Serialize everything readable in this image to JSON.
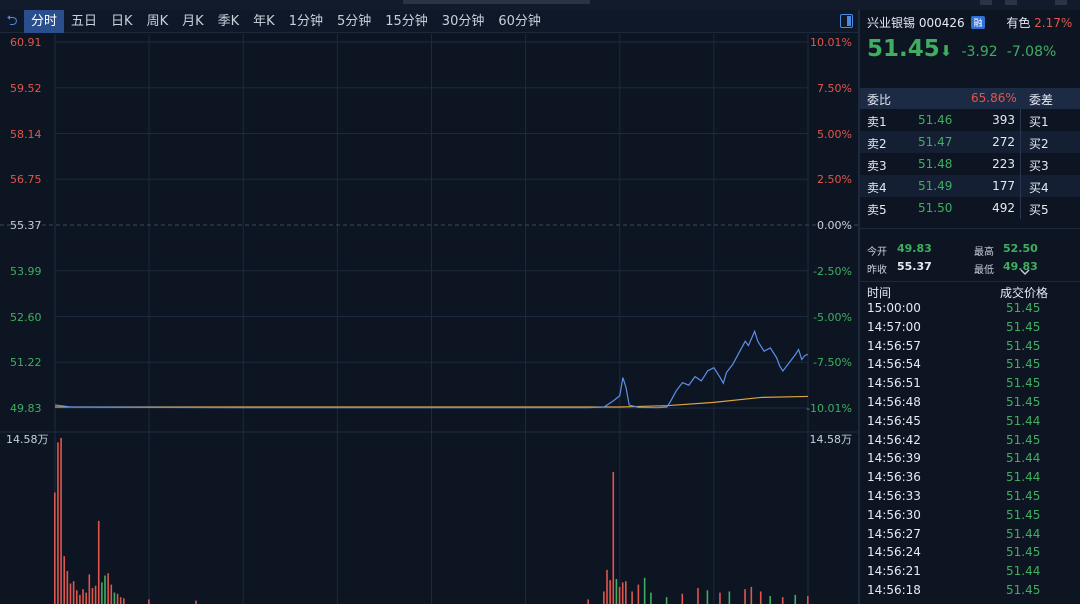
{
  "tabbar": {
    "tabs": [
      "分时",
      "五日",
      "日K",
      "周K",
      "月K",
      "季K",
      "年K",
      "1分钟",
      "5分钟",
      "15分钟",
      "30分钟",
      "60分钟"
    ],
    "active_index": 0
  },
  "chart_data": {
    "type": "line",
    "price_axis": {
      "ticks": [
        "60.91",
        "59.52",
        "58.14",
        "56.75",
        "55.37",
        "53.99",
        "52.60",
        "51.22",
        "49.83"
      ],
      "range": [
        49.83,
        60.91
      ]
    },
    "pct_axis": {
      "ticks": [
        "10.01%",
        "7.50%",
        "5.00%",
        "2.50%",
        "0.00%",
        "-2.50%",
        "-5.00%",
        "-7.50%",
        "-10.01%"
      ]
    },
    "prev_close": 55.37,
    "session_minutes": 240,
    "price_series": [
      [
        0,
        49.92
      ],
      [
        5,
        49.86
      ],
      [
        60,
        49.84
      ],
      [
        120,
        49.84
      ],
      [
        170,
        49.84
      ],
      [
        175,
        49.86
      ],
      [
        178,
        50.05
      ],
      [
        180,
        50.2
      ],
      [
        181,
        50.75
      ],
      [
        182,
        50.45
      ],
      [
        183,
        49.92
      ],
      [
        186,
        49.85
      ],
      [
        192,
        49.84
      ],
      [
        195,
        49.86
      ],
      [
        196,
        50.0
      ],
      [
        198,
        50.35
      ],
      [
        200,
        50.6
      ],
      [
        202,
        50.52
      ],
      [
        204,
        50.78
      ],
      [
        206,
        50.65
      ],
      [
        208,
        50.95
      ],
      [
        210,
        51.05
      ],
      [
        212,
        50.75
      ],
      [
        213,
        50.58
      ],
      [
        214,
        50.9
      ],
      [
        216,
        51.15
      ],
      [
        218,
        51.5
      ],
      [
        220,
        51.85
      ],
      [
        221,
        51.72
      ],
      [
        223,
        52.15
      ],
      [
        224,
        51.85
      ],
      [
        226,
        51.55
      ],
      [
        228,
        51.65
      ],
      [
        230,
        51.35
      ],
      [
        231,
        51.1
      ],
      [
        232,
        50.95
      ],
      [
        234,
        51.2
      ],
      [
        236,
        51.45
      ],
      [
        237,
        51.6
      ],
      [
        238,
        51.3
      ],
      [
        239,
        51.42
      ],
      [
        240,
        51.45
      ]
    ],
    "avg_series": [
      [
        0,
        49.86
      ],
      [
        180,
        49.86
      ],
      [
        195,
        49.9
      ],
      [
        210,
        50.0
      ],
      [
        225,
        50.15
      ],
      [
        240,
        50.18
      ]
    ],
    "volume_axis": {
      "max_label": "14.58万",
      "max": 14.58
    },
    "volume_spikes": [
      [
        0,
        9.8,
        "up"
      ],
      [
        1,
        14.2,
        "up"
      ],
      [
        2,
        14.58,
        "up"
      ],
      [
        3,
        4.2,
        "up"
      ],
      [
        4,
        2.9,
        "up"
      ],
      [
        5,
        1.8,
        "up"
      ],
      [
        6,
        2.0,
        "up"
      ],
      [
        7,
        1.2,
        "up"
      ],
      [
        8,
        0.8,
        "up"
      ],
      [
        9,
        1.3,
        "up"
      ],
      [
        10,
        1.0,
        "up"
      ],
      [
        11,
        2.6,
        "up"
      ],
      [
        12,
        1.4,
        "up"
      ],
      [
        13,
        1.6,
        "up"
      ],
      [
        14,
        7.3,
        "up"
      ],
      [
        15,
        1.9,
        "down"
      ],
      [
        16,
        2.5,
        "down"
      ],
      [
        17,
        2.7,
        "up"
      ],
      [
        18,
        1.7,
        "up"
      ],
      [
        19,
        1.0,
        "down"
      ],
      [
        20,
        0.9,
        "up"
      ],
      [
        21,
        0.6,
        "up"
      ],
      [
        22,
        0.5,
        "up"
      ],
      [
        30,
        0.4,
        "up"
      ],
      [
        45,
        0.3,
        "up"
      ],
      [
        170,
        0.4,
        "up"
      ],
      [
        175,
        1.1,
        "up"
      ],
      [
        176,
        3.0,
        "up"
      ],
      [
        177,
        2.1,
        "up"
      ],
      [
        178,
        11.6,
        "up"
      ],
      [
        179,
        2.2,
        "down"
      ],
      [
        180,
        1.5,
        "up"
      ],
      [
        181,
        1.9,
        "up"
      ],
      [
        182,
        2.0,
        "up"
      ],
      [
        184,
        1.1,
        "up"
      ],
      [
        186,
        1.7,
        "up"
      ],
      [
        188,
        2.3,
        "down"
      ],
      [
        190,
        1.0,
        "down"
      ],
      [
        195,
        0.6,
        "down"
      ],
      [
        200,
        0.9,
        "up"
      ],
      [
        205,
        1.4,
        "up"
      ],
      [
        208,
        1.2,
        "down"
      ],
      [
        212,
        1.0,
        "up"
      ],
      [
        215,
        1.1,
        "down"
      ],
      [
        220,
        1.3,
        "up"
      ],
      [
        222,
        1.5,
        "up"
      ],
      [
        225,
        1.1,
        "up"
      ],
      [
        228,
        0.7,
        "down"
      ],
      [
        232,
        0.6,
        "up"
      ],
      [
        236,
        0.8,
        "down"
      ],
      [
        240,
        0.7,
        "up"
      ]
    ]
  },
  "quote": {
    "name": "兴业银锡",
    "code": "000426",
    "badge": "融",
    "peer_name": "有色",
    "peer_change": "2.17%",
    "price": "51.45",
    "arrow": "⬇",
    "change": "-3.92",
    "change_pct": "-7.08%"
  },
  "weibi": {
    "label": "委比",
    "value": "65.86%",
    "label2": "委差"
  },
  "orderbook": {
    "asks": [
      {
        "label": "卖1",
        "price": "51.46",
        "vol": "393"
      },
      {
        "label": "卖2",
        "price": "51.47",
        "vol": "272"
      },
      {
        "label": "卖3",
        "price": "51.48",
        "vol": "223"
      },
      {
        "label": "卖4",
        "price": "51.49",
        "vol": "177"
      },
      {
        "label": "卖5",
        "price": "51.50",
        "vol": "492"
      }
    ],
    "bids": [
      "买1",
      "买2",
      "买3",
      "买4",
      "买5"
    ]
  },
  "stats": {
    "open_label": "今开",
    "open": "49.83",
    "high_label": "最高",
    "high": "52.50",
    "prev_label": "昨收",
    "prev": "55.37",
    "low_label": "最低",
    "low": "49.83"
  },
  "trades": {
    "time_header": "时间",
    "price_header": "成交价格",
    "rows": [
      {
        "time": "15:00:00",
        "price": "51.45"
      },
      {
        "time": "14:57:00",
        "price": "51.45"
      },
      {
        "time": "14:56:57",
        "price": "51.45"
      },
      {
        "time": "14:56:54",
        "price": "51.45"
      },
      {
        "time": "14:56:51",
        "price": "51.45"
      },
      {
        "time": "14:56:48",
        "price": "51.45"
      },
      {
        "time": "14:56:45",
        "price": "51.44"
      },
      {
        "time": "14:56:42",
        "price": "51.45"
      },
      {
        "time": "14:56:39",
        "price": "51.44"
      },
      {
        "time": "14:56:36",
        "price": "51.44"
      },
      {
        "time": "14:56:33",
        "price": "51.45"
      },
      {
        "time": "14:56:30",
        "price": "51.45"
      },
      {
        "time": "14:56:27",
        "price": "51.44"
      },
      {
        "time": "14:56:24",
        "price": "51.45"
      },
      {
        "time": "14:56:21",
        "price": "51.44"
      },
      {
        "time": "14:56:18",
        "price": "51.45"
      }
    ]
  },
  "colors": {
    "up": "#e0564c",
    "down": "#3fae5f",
    "price_line": "#5b8fe6",
    "avg_line": "#d9a441",
    "grid": "#1d2a3d"
  }
}
